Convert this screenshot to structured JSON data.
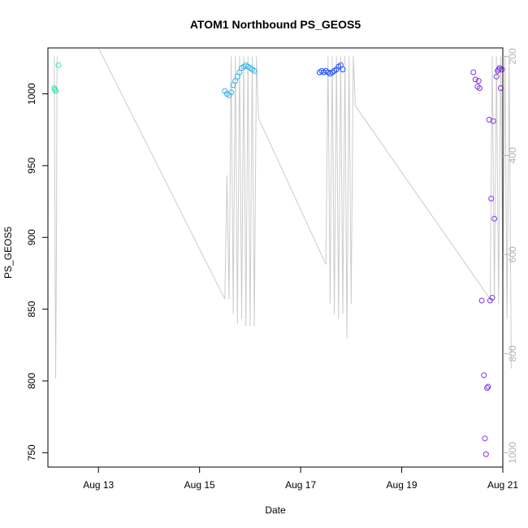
{
  "chart_data": {
    "type": "scatter",
    "title": "ATOM1 Northbound PS_GEOS5",
    "xlabel": "Date",
    "ylabel": "PS_GEOS5",
    "x_ticks": [
      "Aug 13",
      "Aug 15",
      "Aug 17",
      "Aug 19",
      "Aug 21"
    ],
    "y_ticks": [
      "750",
      "800",
      "850",
      "900",
      "950",
      "1000"
    ],
    "y2_ticks": [
      "200",
      "400",
      "600",
      "800",
      "1000"
    ],
    "xlim": [
      "2016-08-12",
      "2016-08-21"
    ],
    "ylim": [
      740,
      1032
    ],
    "y2lim": [
      183,
      1029
    ],
    "y2_reversed": true,
    "grid": false,
    "colors": {
      "line": "#cccccc",
      "right_axis": "#b3b3b3",
      "flight1": "#33e6b3",
      "flight2": "#33b3e6",
      "flight3": "#1a4dff",
      "flight4": "#8033e6"
    },
    "series": [
      {
        "color": "flight1",
        "x": [
          "2016-08-12 03:00",
          "2016-08-12 03:20",
          "2016-08-12 03:40",
          "2016-08-12 05:00"
        ],
        "y": [
          1004,
          1003,
          1002,
          1020
        ]
      },
      {
        "color": "flight2",
        "x": [
          "2016-08-15 12:00",
          "2016-08-15 13:00",
          "2016-08-15 14:00",
          "2016-08-15 15:00",
          "2016-08-15 16:00",
          "2016-08-15 17:00",
          "2016-08-15 18:00",
          "2016-08-15 19:00",
          "2016-08-15 20:00",
          "2016-08-15 21:00",
          "2016-08-15 22:00",
          "2016-08-15 23:00",
          "2016-08-16 00:00",
          "2016-08-16 01:00",
          "2016-08-16 02:00"
        ],
        "y": [
          1002,
          1000,
          999,
          1001,
          1006,
          1009,
          1012,
          1015,
          1018,
          1019,
          1020,
          1019,
          1018,
          1017,
          1016
        ]
      },
      {
        "color": "flight3",
        "x": [
          "2016-08-17 09:00",
          "2016-08-17 10:00",
          "2016-08-17 11:00",
          "2016-08-17 12:00",
          "2016-08-17 13:00",
          "2016-08-17 14:00",
          "2016-08-17 15:00",
          "2016-08-17 16:00",
          "2016-08-17 17:00",
          "2016-08-17 18:00",
          "2016-08-17 19:00",
          "2016-08-17 20:00"
        ],
        "y": [
          1015,
          1016,
          1015,
          1016,
          1015,
          1014,
          1015,
          1016,
          1017,
          1019,
          1020,
          1017
        ]
      },
      {
        "color": "flight4",
        "x": [
          "2016-08-20 10:00",
          "2016-08-20 11:00",
          "2016-08-20 12:00",
          "2016-08-20 12:30",
          "2016-08-20 13:00",
          "2016-08-20 14:00",
          "2016-08-20 15:00",
          "2016-08-20 15:30",
          "2016-08-20 16:00",
          "2016-08-20 16:30",
          "2016-08-20 17:00",
          "2016-08-20 17:30",
          "2016-08-20 18:00",
          "2016-08-20 18:30",
          "2016-08-20 19:00",
          "2016-08-20 19:30",
          "2016-08-20 20:00",
          "2016-08-20 21:00",
          "2016-08-20 21:30",
          "2016-08-20 22:00",
          "2016-08-20 22:30",
          "2016-08-20 23:00",
          "2016-08-20 23:30"
        ],
        "y": [
          1015,
          1010,
          1005,
          1009,
          1004,
          856,
          804,
          760,
          749,
          795,
          796,
          982,
          856,
          927,
          858,
          981,
          913,
          1012,
          1016,
          1017,
          1018,
          1004,
          1017
        ]
      }
    ],
    "profile_lines": [
      [
        [
          "2016-08-12 03:00",
          200
        ],
        [
          "2016-08-12 03:20",
          520
        ],
        [
          "2016-08-12 03:40",
          850
        ],
        [
          "2016-08-12 04:00",
          620
        ],
        [
          "2016-08-12 04:20",
          200
        ]
      ],
      [
        [
          "2016-08-13 00:00",
          183
        ],
        [
          "2016-08-15 12:00",
          690
        ],
        [
          "2016-08-15 13:00",
          440
        ],
        [
          "2016-08-15 14:00",
          690
        ],
        [
          "2016-08-15 15:00",
          200
        ],
        [
          "2016-08-15 16:00",
          720
        ],
        [
          "2016-08-15 17:00",
          200
        ],
        [
          "2016-08-15 18:00",
          740
        ],
        [
          "2016-08-15 19:00",
          200
        ],
        [
          "2016-08-15 20:00",
          730
        ],
        [
          "2016-08-15 21:00",
          200
        ],
        [
          "2016-08-15 22:00",
          745
        ],
        [
          "2016-08-15 23:00",
          200
        ],
        [
          "2016-08-16 00:00",
          745
        ],
        [
          "2016-08-16 01:00",
          200
        ],
        [
          "2016-08-16 02:00",
          745
        ],
        [
          "2016-08-16 03:00",
          200
        ],
        [
          "2016-08-16 04:00",
          325
        ],
        [
          "2016-08-17 12:00",
          620
        ],
        [
          "2016-08-17 13:00",
          200
        ],
        [
          "2016-08-17 14:00",
          700
        ],
        [
          "2016-08-17 15:00",
          200
        ],
        [
          "2016-08-17 16:00",
          720
        ],
        [
          "2016-08-17 17:00",
          200
        ],
        [
          "2016-08-17 18:00",
          730
        ],
        [
          "2016-08-17 19:00",
          200
        ],
        [
          "2016-08-17 20:00",
          720
        ],
        [
          "2016-08-17 21:00",
          200
        ],
        [
          "2016-08-17 22:00",
          770
        ],
        [
          "2016-08-17 23:00",
          200
        ],
        [
          "2016-08-18 00:00",
          700
        ],
        [
          "2016-08-18 01:00",
          200
        ],
        [
          "2016-08-18 02:00",
          300
        ],
        [
          "2016-08-20 18:00",
          690
        ],
        [
          "2016-08-20 19:00",
          200
        ],
        [
          "2016-08-20 20:00",
          690
        ],
        [
          "2016-08-20 21:00",
          200
        ],
        [
          "2016-08-20 22:00",
          700
        ],
        [
          "2016-08-20 23:00",
          200
        ],
        [
          "2016-08-21 00:00",
          650
        ],
        [
          "2016-08-21 01:00",
          200
        ],
        [
          "2016-08-21 02:00",
          730
        ],
        [
          "2016-08-21 03:00",
          200
        ],
        [
          "2016-08-21 04:00",
          830
        ]
      ]
    ]
  }
}
